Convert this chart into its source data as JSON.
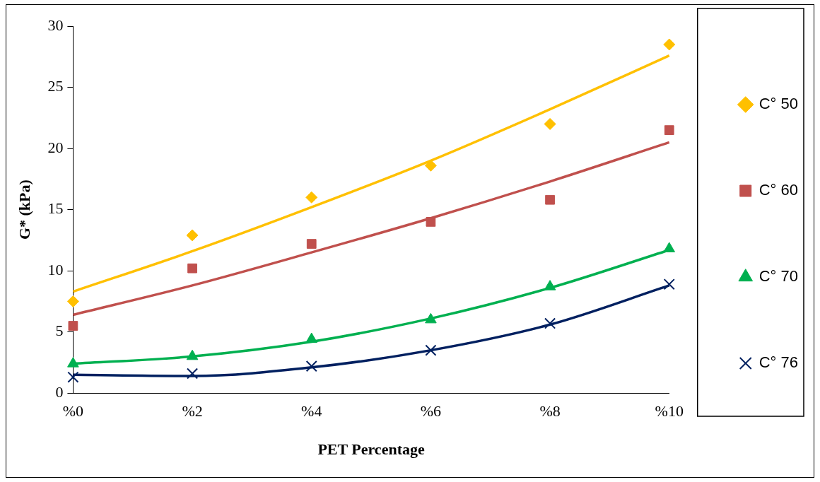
{
  "chart_data": {
    "type": "scatter",
    "xlabel": "PET Percentage",
    "ylabel": "G* (kPa)",
    "categories": [
      "%0",
      "%2",
      "%4",
      "%6",
      "%8",
      "%10"
    ],
    "ylim": [
      0,
      30
    ],
    "yticks": [
      0,
      5,
      10,
      15,
      20,
      25,
      30
    ],
    "grid": false,
    "legend": "right",
    "series": [
      {
        "name": "C° 50",
        "color": "#ffc000",
        "marker": "diamond",
        "values": [
          7.5,
          12.9,
          16.0,
          18.6,
          22.0,
          28.5
        ]
      },
      {
        "name": "C° 60",
        "color": "#c0504d",
        "marker": "square",
        "values": [
          5.5,
          10.2,
          12.2,
          14.0,
          15.8,
          21.5
        ]
      },
      {
        "name": "C° 70",
        "color": "#00b050",
        "marker": "triangle",
        "values": [
          2.4,
          3.0,
          4.4,
          6.0,
          8.7,
          11.8
        ]
      },
      {
        "name": "C° 76",
        "color": "#002060",
        "marker": "cross",
        "values": [
          1.3,
          1.6,
          2.2,
          3.5,
          5.7,
          8.9
        ]
      },
      {
        "type": "line",
        "color": "#ffc000",
        "marker": "none",
        "values": [
          8.3,
          11.6,
          15.2,
          19.0,
          23.2,
          27.6
        ]
      },
      {
        "type": "line",
        "color": "#c0504d",
        "marker": "none",
        "values": [
          6.4,
          8.8,
          11.5,
          14.3,
          17.3,
          20.5
        ]
      },
      {
        "type": "line",
        "color": "#00b050",
        "marker": "none",
        "values": [
          2.4,
          3.0,
          4.2,
          6.1,
          8.6,
          11.7
        ]
      },
      {
        "type": "line",
        "color": "#002060",
        "marker": "none",
        "values": [
          1.5,
          1.4,
          2.1,
          3.5,
          5.6,
          8.8
        ]
      }
    ]
  }
}
